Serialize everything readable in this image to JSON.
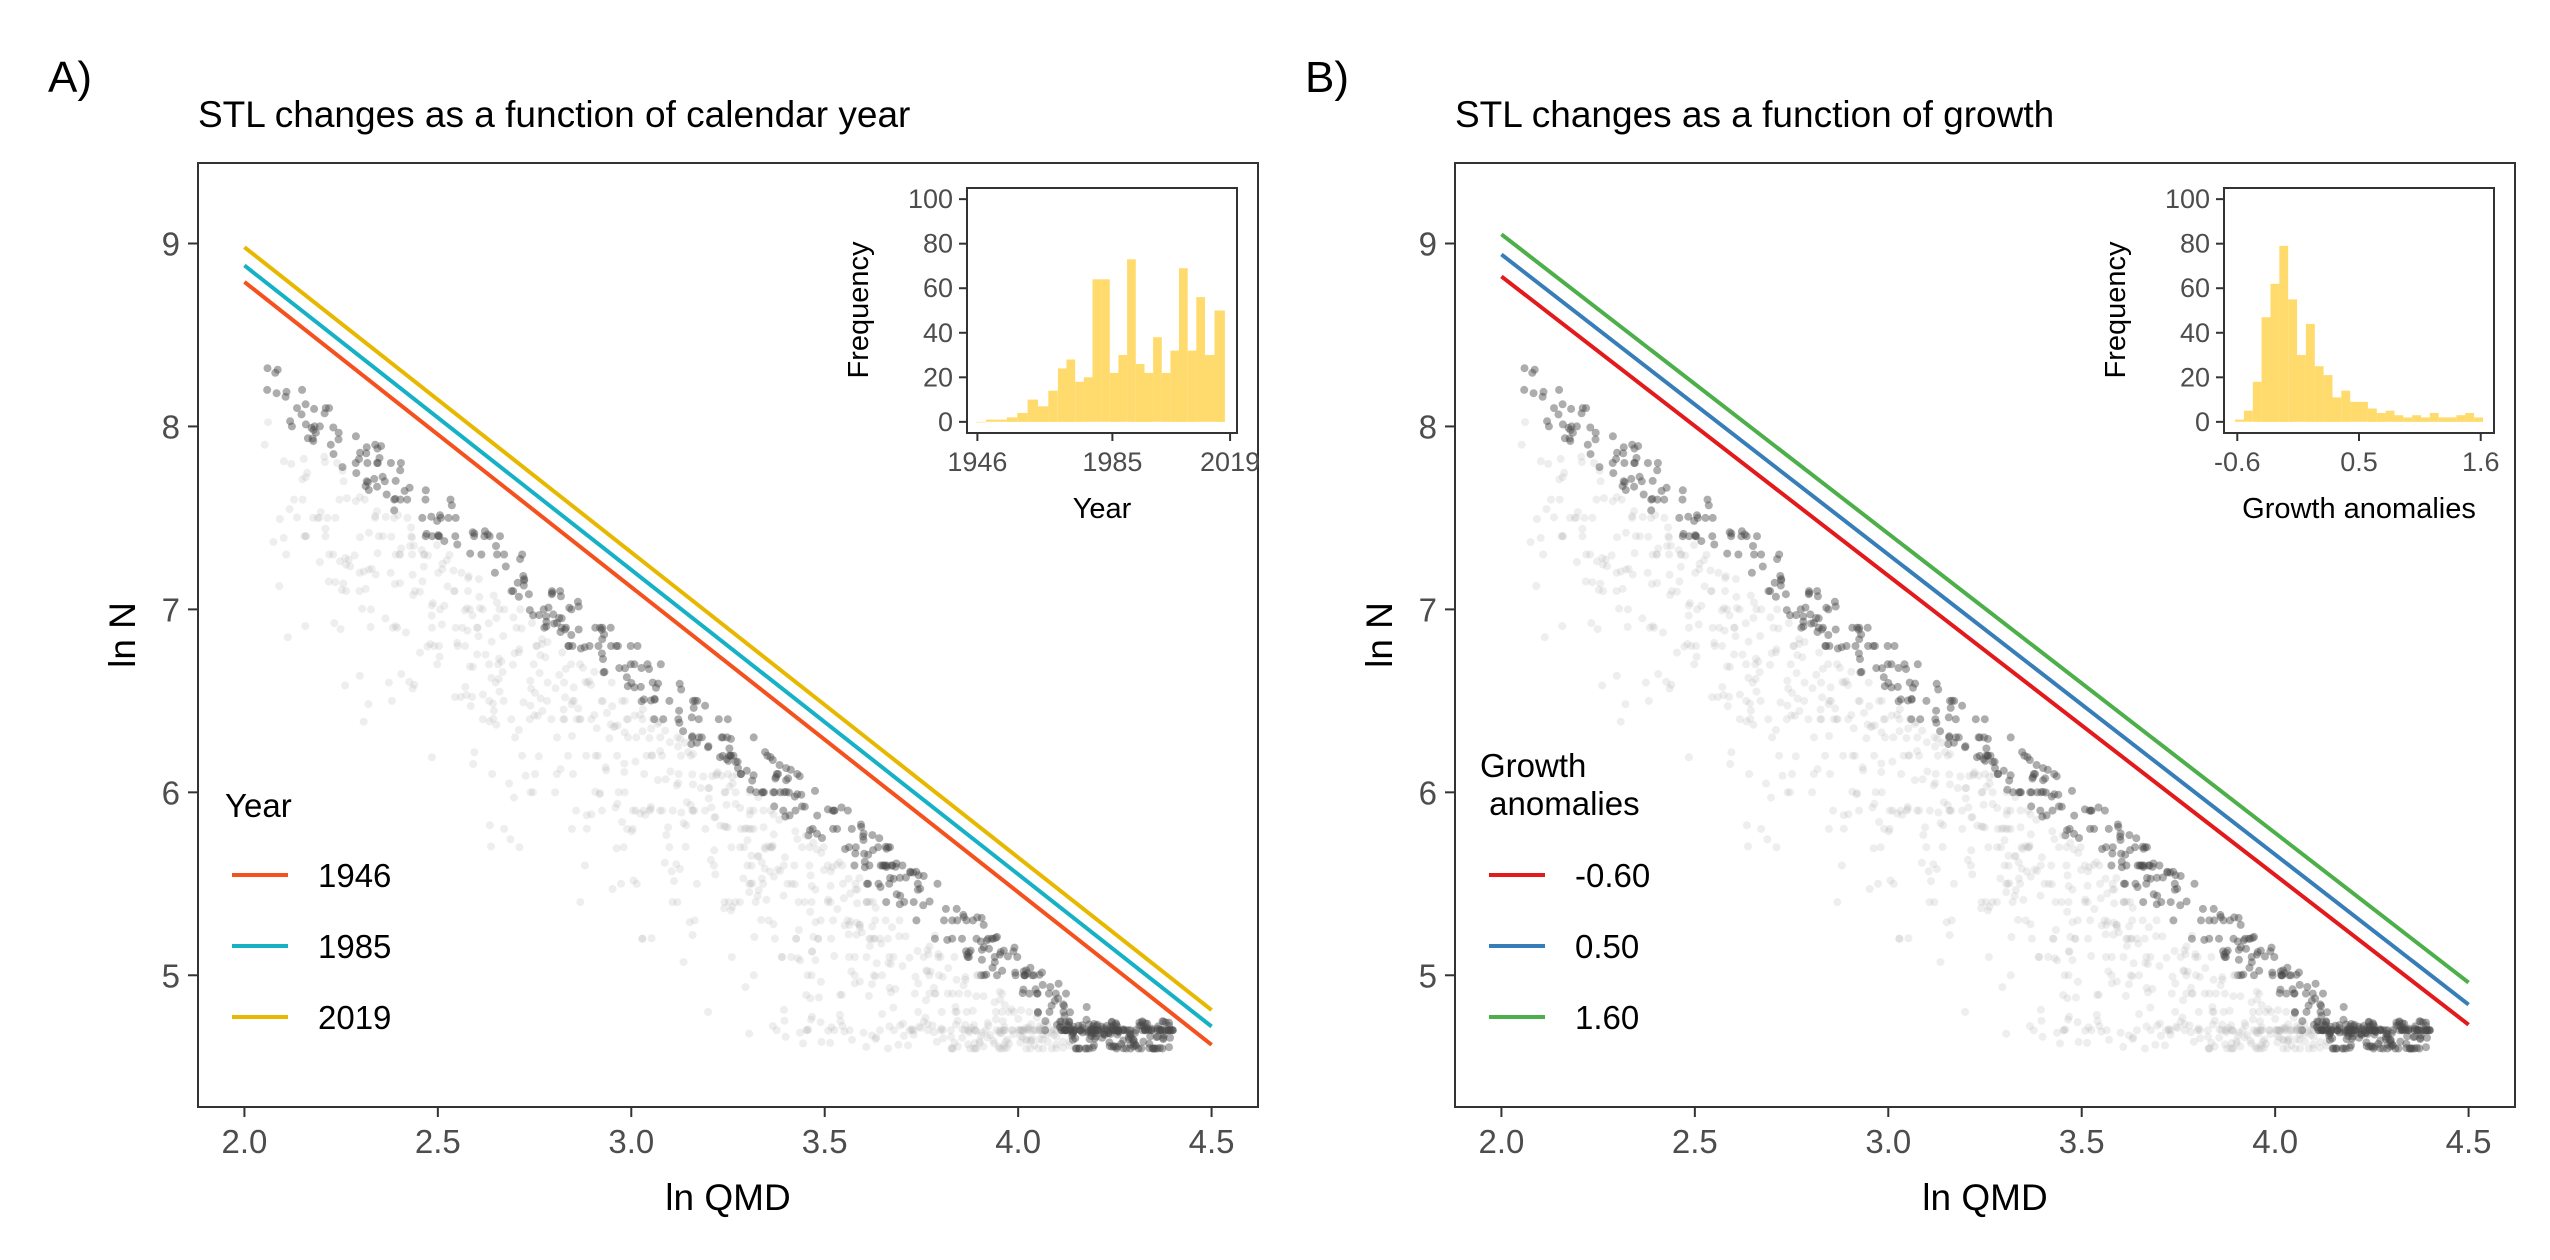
{
  "chart_data": [
    {
      "panel_tag": "A)",
      "type": "scatter",
      "title": "STL changes as a function of calendar year",
      "xlabel": "ln QMD",
      "ylabel": "ln N",
      "xlim": [
        1.88,
        4.62
      ],
      "ylim": [
        4.28,
        9.44
      ],
      "xticks": [
        "2.0",
        "2.5",
        "3.0",
        "3.5",
        "4.0",
        "4.5"
      ],
      "yticks": [
        "5",
        "6",
        "7",
        "8",
        "9"
      ],
      "grid": false,
      "legend": {
        "title_lines": [
          "Year"
        ],
        "placement": "bottom-left",
        "items": [
          {
            "label": "1946",
            "color": "#F4511E"
          },
          {
            "label": "1985",
            "color": "#17B1C5"
          },
          {
            "label": "2019",
            "color": "#E6B800"
          }
        ]
      },
      "series": [
        {
          "name": "1946",
          "color": "#F4511E",
          "x": [
            2.0,
            4.5
          ],
          "y": [
            8.79,
            4.62
          ]
        },
        {
          "name": "1985",
          "color": "#17B1C5",
          "x": [
            2.0,
            4.5
          ],
          "y": [
            8.88,
            4.72
          ]
        },
        {
          "name": "2019",
          "color": "#E6B800",
          "x": [
            2.0,
            4.5
          ],
          "y": [
            8.98,
            4.81
          ]
        }
      ],
      "inset": {
        "type": "bar",
        "xlabel": "Year",
        "ylabel": "Frequency",
        "xlim": [
          1943,
          2021
        ],
        "ylim": [
          -5,
          105
        ],
        "xticks": [
          "1946",
          "1985",
          "2019"
        ],
        "xtick_values": [
          1946,
          1985,
          2019
        ],
        "yticks": [
          "0",
          "20",
          "40",
          "60",
          "80",
          "100"
        ],
        "color": "#FFDB6E",
        "bins": [
          {
            "x": 1947,
            "value": 0
          },
          {
            "x": 1950,
            "value": 1
          },
          {
            "x": 1953,
            "value": 1
          },
          {
            "x": 1956,
            "value": 2
          },
          {
            "x": 1959,
            "value": 4
          },
          {
            "x": 1962,
            "value": 10
          },
          {
            "x": 1965,
            "value": 7
          },
          {
            "x": 1968,
            "value": 14
          },
          {
            "x": 1970.5,
            "value": 24
          },
          {
            "x": 1973,
            "value": 28
          },
          {
            "x": 1975.5,
            "value": 18
          },
          {
            "x": 1978,
            "value": 20
          },
          {
            "x": 1980.5,
            "value": 64
          },
          {
            "x": 1983,
            "value": 64
          },
          {
            "x": 1985.5,
            "value": 22
          },
          {
            "x": 1988,
            "value": 30
          },
          {
            "x": 1990.5,
            "value": 73
          },
          {
            "x": 1993,
            "value": 26
          },
          {
            "x": 1995.5,
            "value": 22
          },
          {
            "x": 1998,
            "value": 38
          },
          {
            "x": 2000.5,
            "value": 22
          },
          {
            "x": 2003,
            "value": 32
          },
          {
            "x": 2005.5,
            "value": 69
          },
          {
            "x": 2008,
            "value": 32
          },
          {
            "x": 2010.5,
            "value": 56
          },
          {
            "x": 2013,
            "value": 30
          },
          {
            "x": 2016,
            "value": 50
          }
        ]
      }
    },
    {
      "panel_tag": "B)",
      "type": "scatter",
      "title": "STL changes as a function of growth",
      "xlabel": "ln QMD",
      "ylabel": "ln N",
      "xlim": [
        1.88,
        4.62
      ],
      "ylim": [
        4.28,
        9.44
      ],
      "xticks": [
        "2.0",
        "2.5",
        "3.0",
        "3.5",
        "4.0",
        "4.5"
      ],
      "yticks": [
        "5",
        "6",
        "7",
        "8",
        "9"
      ],
      "grid": false,
      "legend": {
        "title_lines": [
          "Growth",
          " anomalies"
        ],
        "placement": "bottom-left",
        "items": [
          {
            "label": "-0.60",
            "color": "#E31A1C"
          },
          {
            "label": "0.50",
            "color": "#377EB8"
          },
          {
            "label": "1.60",
            "color": "#4DAF4A"
          }
        ]
      },
      "series": [
        {
          "name": "-0.60",
          "color": "#E31A1C",
          "x": [
            2.0,
            4.5
          ],
          "y": [
            8.82,
            4.73
          ]
        },
        {
          "name": "0.50",
          "color": "#377EB8",
          "x": [
            2.0,
            4.5
          ],
          "y": [
            8.94,
            4.84
          ]
        },
        {
          "name": "1.60",
          "color": "#4DAF4A",
          "x": [
            2.0,
            4.5
          ],
          "y": [
            9.05,
            4.96
          ]
        }
      ],
      "inset": {
        "type": "bar",
        "xlabel": "Growth anomalies",
        "ylabel": "Frequency",
        "xlim": [
          -0.72,
          1.72
        ],
        "ylim": [
          -5,
          105
        ],
        "xticks": [
          "-0.6",
          "0.5",
          "1.6"
        ],
        "xtick_values": [
          -0.6,
          0.5,
          1.6
        ],
        "yticks": [
          "0",
          "20",
          "40",
          "60",
          "80",
          "100"
        ],
        "color": "#FFDB6E",
        "bins": [
          {
            "x": -0.58,
            "value": 1
          },
          {
            "x": -0.5,
            "value": 5
          },
          {
            "x": -0.42,
            "value": 18
          },
          {
            "x": -0.34,
            "value": 47
          },
          {
            "x": -0.26,
            "value": 62
          },
          {
            "x": -0.18,
            "value": 79
          },
          {
            "x": -0.1,
            "value": 55
          },
          {
            "x": -0.02,
            "value": 30
          },
          {
            "x": 0.06,
            "value": 44
          },
          {
            "x": 0.14,
            "value": 25
          },
          {
            "x": 0.22,
            "value": 21
          },
          {
            "x": 0.3,
            "value": 11
          },
          {
            "x": 0.38,
            "value": 14
          },
          {
            "x": 0.46,
            "value": 9
          },
          {
            "x": 0.54,
            "value": 9
          },
          {
            "x": 0.62,
            "value": 6
          },
          {
            "x": 0.7,
            "value": 4
          },
          {
            "x": 0.78,
            "value": 5
          },
          {
            "x": 0.86,
            "value": 3
          },
          {
            "x": 0.94,
            "value": 2
          },
          {
            "x": 1.02,
            "value": 3
          },
          {
            "x": 1.1,
            "value": 2
          },
          {
            "x": 1.18,
            "value": 4
          },
          {
            "x": 1.26,
            "value": 2
          },
          {
            "x": 1.34,
            "value": 2
          },
          {
            "x": 1.42,
            "value": 3
          },
          {
            "x": 1.5,
            "value": 4
          },
          {
            "x": 1.58,
            "value": 2
          }
        ]
      }
    }
  ]
}
